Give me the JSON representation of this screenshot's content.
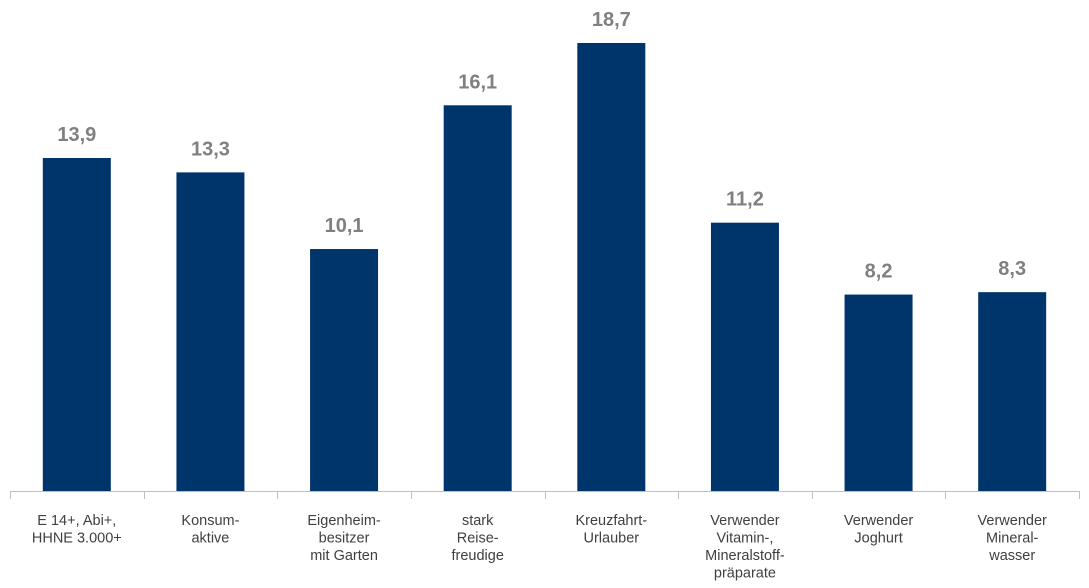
{
  "chart_data": {
    "type": "bar",
    "categories": [
      [
        "E 14+, Abi+,",
        "HHNE 3.000+"
      ],
      [
        "Konsum-",
        "aktive"
      ],
      [
        "Eigenheim-",
        "besitzer",
        "mit Garten"
      ],
      [
        "stark",
        "Reise-",
        "freudige"
      ],
      [
        "Kreuzfahrt-",
        "Urlauber"
      ],
      [
        "Verwender",
        "Vitamin-,",
        "Mineralstoff-",
        "präparate"
      ],
      [
        "Verwender",
        "Joghurt"
      ],
      [
        "Verwender",
        "Mineral-",
        "wasser"
      ]
    ],
    "values": [
      13.9,
      13.3,
      10.1,
      16.1,
      18.7,
      11.2,
      8.2,
      8.3
    ],
    "value_labels": [
      "13,9",
      "13,3",
      "10,1",
      "16,1",
      "18,7",
      "11,2",
      "8,2",
      "8,3"
    ],
    "ylim": [
      0,
      20
    ],
    "grid": false,
    "colors": {
      "bar": "#00356b",
      "value_label": "#808080",
      "category_label": "#404040",
      "axis": "#bfbfbf"
    }
  }
}
